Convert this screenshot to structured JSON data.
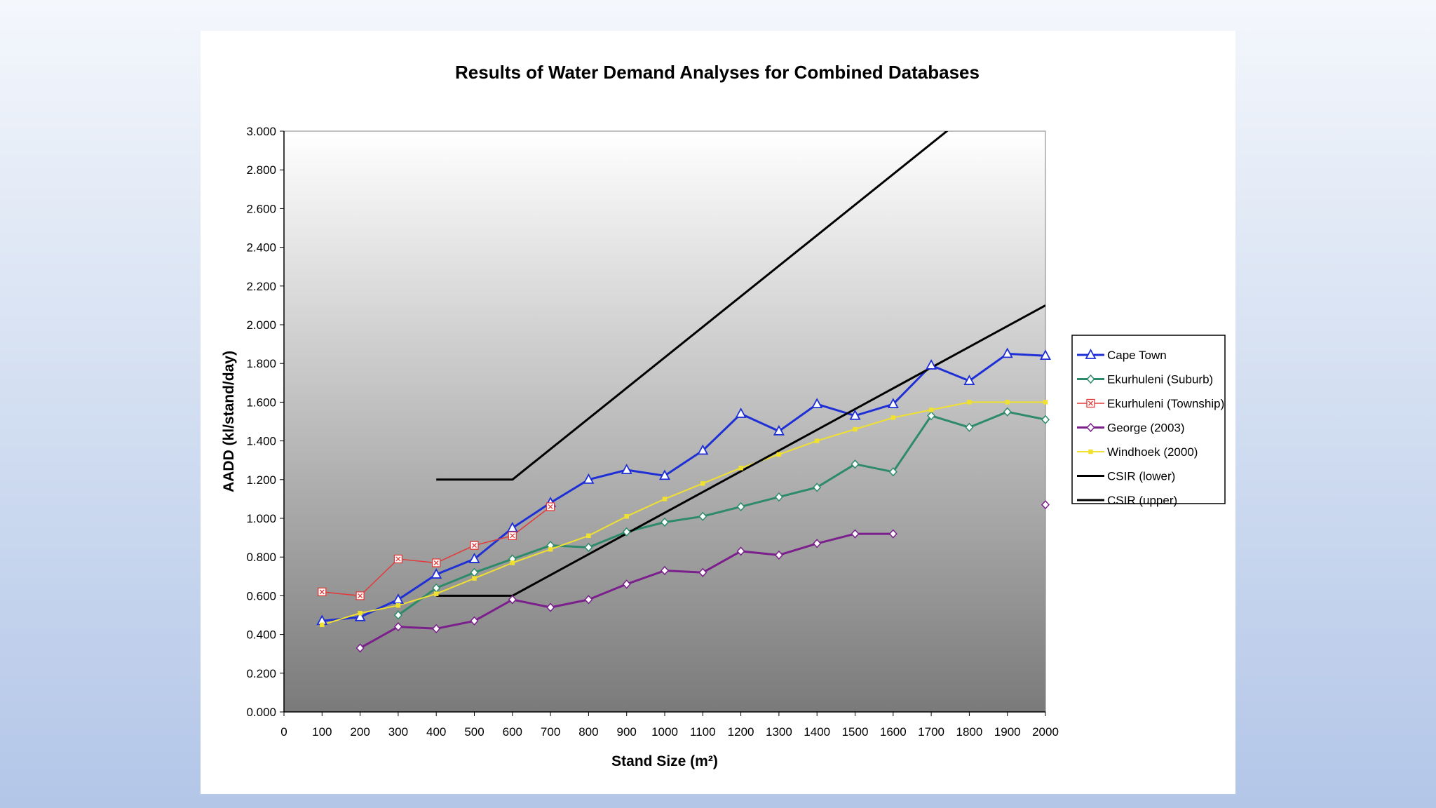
{
  "chart_data": {
    "type": "line",
    "title": "Results of Water Demand Analyses for Combined Databases",
    "xlabel": "Stand Size (m²)",
    "ylabel": "AADD (kl/stand/day)",
    "xlim": [
      0,
      2000
    ],
    "ylim": [
      0,
      3.0
    ],
    "x_ticks": [
      "0",
      "100",
      "200",
      "300",
      "400",
      "500",
      "600",
      "700",
      "800",
      "900",
      "1000",
      "1100",
      "1200",
      "1300",
      "1400",
      "1500",
      "1600",
      "1700",
      "1800",
      "1900",
      "2000"
    ],
    "y_ticks": [
      "0.000",
      "0.200",
      "0.400",
      "0.600",
      "0.800",
      "1.000",
      "1.200",
      "1.400",
      "1.600",
      "1.800",
      "2.000",
      "2.200",
      "2.400",
      "2.600",
      "2.800",
      "3.000"
    ],
    "grid": false,
    "plot_background": "gradient white-to-gray",
    "legend_position": "right",
    "series": [
      {
        "name": "Cape Town",
        "color": "#1f2fd6",
        "marker": "triangle",
        "line_width": 3,
        "x": [
          100,
          200,
          300,
          400,
          500,
          600,
          700,
          800,
          900,
          1000,
          1100,
          1200,
          1300,
          1400,
          1500,
          1600,
          1700,
          1800,
          1900,
          2000
        ],
        "y": [
          0.47,
          0.49,
          0.58,
          0.71,
          0.79,
          0.95,
          1.08,
          1.2,
          1.25,
          1.22,
          1.35,
          1.54,
          1.45,
          1.59,
          1.53,
          1.59,
          1.79,
          1.71,
          1.85,
          1.84
        ]
      },
      {
        "name": "Ekurhuleni (Suburb)",
        "color": "#2e8b6a",
        "marker": "diamond",
        "line_width": 3,
        "x": [
          300,
          400,
          500,
          600,
          700,
          800,
          900,
          1000,
          1100,
          1200,
          1300,
          1400,
          1500,
          1600,
          1700,
          1800,
          1900,
          2000
        ],
        "y": [
          0.5,
          0.64,
          0.72,
          0.79,
          0.86,
          0.85,
          0.93,
          0.98,
          1.01,
          1.06,
          1.11,
          1.16,
          1.28,
          1.24,
          1.53,
          1.47,
          1.55,
          1.51
        ]
      },
      {
        "name": "Ekurhuleni (Township)",
        "color": "#e23a3a",
        "marker": "x-square",
        "line_width": 1.5,
        "x": [
          100,
          200,
          300,
          400,
          500,
          600,
          700
        ],
        "y": [
          0.62,
          0.6,
          0.79,
          0.77,
          0.86,
          0.91,
          1.06
        ]
      },
      {
        "name": "George (2003)",
        "color": "#7a1f8c",
        "marker": "diamond",
        "line_width": 3,
        "x": [
          200,
          300,
          400,
          500,
          600,
          700,
          800,
          900,
          1000,
          1100,
          1200,
          1300,
          1400,
          1500,
          1600
        ],
        "y": [
          0.33,
          0.44,
          0.43,
          0.47,
          0.58,
          0.54,
          0.58,
          0.66,
          0.73,
          0.72,
          0.83,
          0.81,
          0.87,
          0.92,
          0.92
        ],
        "extra_points": [
          {
            "x": 2000,
            "y": 1.07
          }
        ]
      },
      {
        "name": "Windhoek (2000)",
        "color": "#f0e030",
        "marker": "square",
        "line_width": 2,
        "x": [
          100,
          200,
          300,
          400,
          500,
          600,
          700,
          800,
          900,
          1000,
          1100,
          1200,
          1300,
          1400,
          1500,
          1600,
          1700,
          1800,
          1900,
          2000
        ],
        "y": [
          0.45,
          0.51,
          0.55,
          0.61,
          0.69,
          0.77,
          0.84,
          0.91,
          1.01,
          1.1,
          1.18,
          1.26,
          1.33,
          1.4,
          1.46,
          1.52,
          1.56,
          1.6,
          1.6,
          1.6
        ]
      },
      {
        "name": "CSIR (lower)",
        "color": "#000000",
        "marker": "none",
        "line_width": 3,
        "x": [
          400,
          600,
          2000
        ],
        "y": [
          0.6,
          0.6,
          2.1
        ]
      },
      {
        "name": "CSIR (upper)",
        "color": "#000000",
        "marker": "none",
        "line_width": 3,
        "x": [
          400,
          600,
          1760
        ],
        "y": [
          1.2,
          1.2,
          3.03
        ]
      }
    ]
  }
}
